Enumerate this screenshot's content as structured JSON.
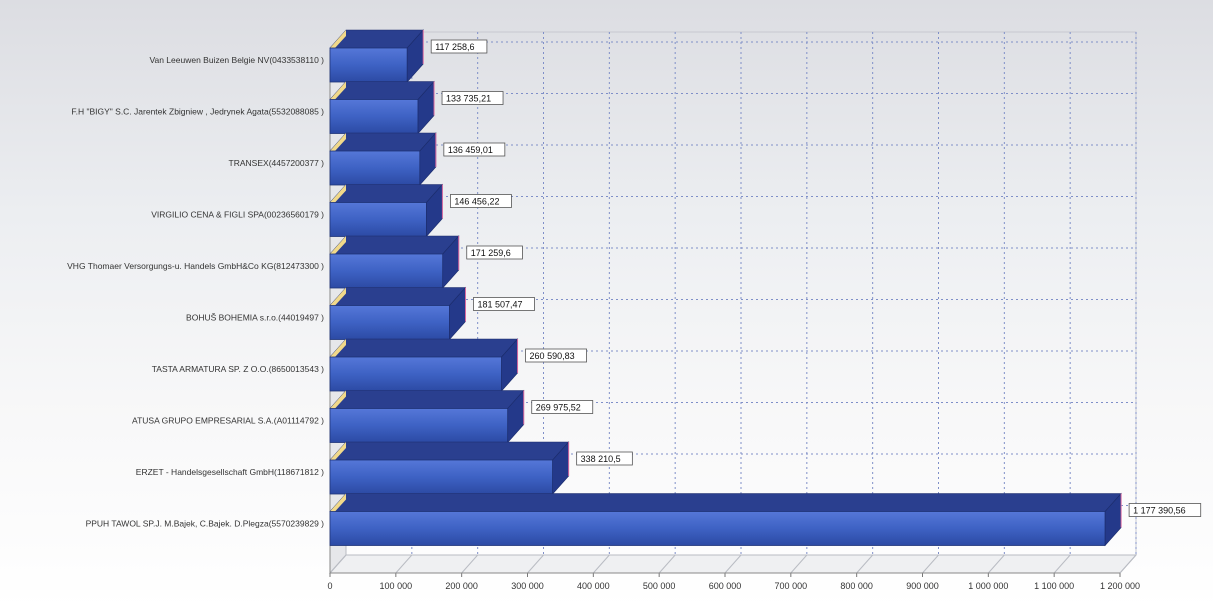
{
  "chart_data": {
    "type": "bar",
    "orientation": "horizontal",
    "style": "3d",
    "bar_color": "#3e62c4",
    "categories": [
      "Van Leeuwen Buizen Belgie NV(0433538110 )",
      "F.H \"BIGY\" S.C. Jarentek Zbigniew , Jedrynek Agata(5532088085 )",
      "TRANSEX(4457200377 )",
      "VIRGILIO CENA & FIGLI SPA(00236560179 )",
      "VHG Thomaer Versorgungs-u. Handels GmbH&Co KG(812473300 )",
      "BOHUŠ BOHEMIA s.r.o.(44019497 )",
      "TASTA ARMATURA SP. Z O.O.(8650013543 )",
      "ATUSA GRUPO EMPRESARIAL S.A.(A01114792 )",
      "ERZET - Handelsgesellschaft GmbH(118671812 )",
      "PPUH TAWOL SP.J. M.Bajek, C.Bajek. D.Plegza(5570239829 )"
    ],
    "values": [
      117258.6,
      133735.21,
      136459.01,
      146456.22,
      171259.6,
      181507.47,
      260590.83,
      269975.52,
      338210.5,
      1177390.56
    ],
    "value_labels": [
      "117 258,6",
      "133 735,21",
      "136 459,01",
      "146 456,22",
      "171 259,6",
      "181 507,47",
      "260 590,83",
      "269 975,52",
      "338 210,5",
      "1 177 390,56"
    ],
    "xlim": [
      0,
      1200000
    ],
    "xticks": [
      0,
      100000,
      200000,
      300000,
      400000,
      500000,
      600000,
      700000,
      800000,
      900000,
      1000000,
      1100000,
      1200000
    ],
    "xtick_labels": [
      "0",
      "100 000",
      "200 000",
      "300 000",
      "400 000",
      "500 000",
      "600 000",
      "700 000",
      "800 000",
      "900 000",
      "1 000 000",
      "1 100 000",
      "1 200 000"
    ],
    "grid": true,
    "legend": "none",
    "title": "",
    "xlabel": "",
    "ylabel": ""
  }
}
